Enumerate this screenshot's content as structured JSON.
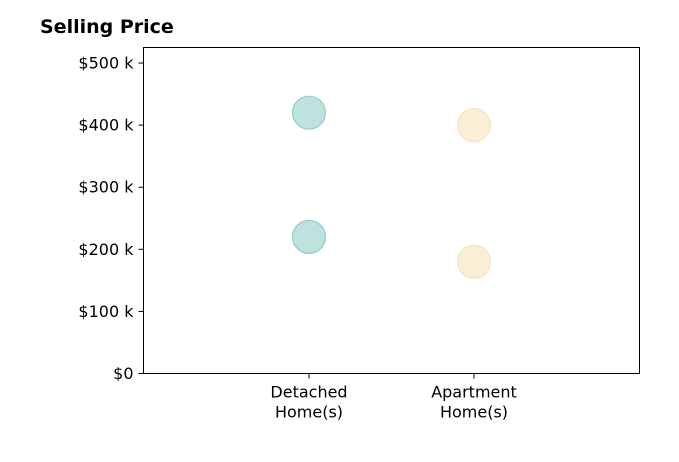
{
  "chart_data": {
    "type": "scatter",
    "title": "Selling Price",
    "xlabel": "",
    "ylabel": "",
    "categories": [
      "Detached\nHome(s)",
      "Apartment\nHome(s)"
    ],
    "ylim": [
      0,
      525000
    ],
    "yticks": [
      {
        "value": 0,
        "label": "$0"
      },
      {
        "value": 100000,
        "label": "$100 k"
      },
      {
        "value": 200000,
        "label": "$200 k"
      },
      {
        "value": 300000,
        "label": "$300 k"
      },
      {
        "value": 400000,
        "label": "$400 k"
      },
      {
        "value": 500000,
        "label": "$500 k"
      }
    ],
    "series": [
      {
        "category": "Detached\nHome(s)",
        "values": [
          420000,
          220000
        ],
        "color": "#7ec6be"
      },
      {
        "category": "Apartment\nHome(s)",
        "values": [
          400000,
          180000
        ],
        "color": "#f5dfad"
      }
    ],
    "grid": false,
    "legend": "none"
  }
}
